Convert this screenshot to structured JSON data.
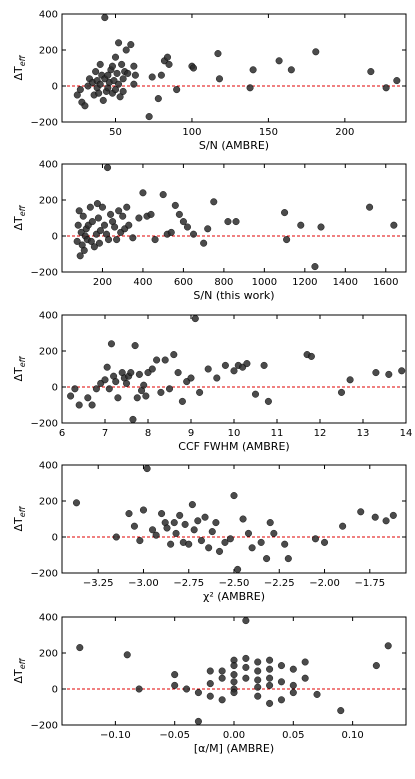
{
  "chart_data": [
    {
      "type": "scatter",
      "xlabel": "S/N (AMBRE)",
      "ylabel": "ΔT_eff",
      "xlim": [
        15,
        240
      ],
      "ylim": [
        -200,
        400
      ],
      "xticks": [
        50,
        100,
        150,
        200
      ],
      "yticks": [
        -200,
        0,
        200,
        400
      ],
      "reference_line": {
        "y": 0,
        "color": "#e00000",
        "style": "dashed"
      },
      "x": [
        25,
        27,
        28,
        30,
        32,
        33,
        35,
        36,
        37,
        38,
        38,
        39,
        40,
        40,
        41,
        42,
        43,
        43,
        44,
        45,
        45,
        46,
        47,
        48,
        48,
        49,
        50,
        50,
        51,
        52,
        52,
        53,
        54,
        55,
        55,
        56,
        57,
        58,
        60,
        62,
        62,
        63,
        72,
        74,
        78,
        80,
        82,
        84,
        85,
        90,
        100,
        101,
        117,
        118,
        138,
        140,
        157,
        165,
        181,
        217,
        227,
        234
      ],
      "y": [
        -50,
        -20,
        -90,
        -110,
        0,
        40,
        20,
        -50,
        80,
        -10,
        30,
        -40,
        10,
        120,
        60,
        -80,
        380,
        40,
        -30,
        60,
        -10,
        20,
        90,
        110,
        -40,
        30,
        160,
        -20,
        70,
        10,
        240,
        -60,
        120,
        40,
        -30,
        80,
        200,
        70,
        230,
        10,
        110,
        60,
        -170,
        50,
        -70,
        60,
        140,
        160,
        120,
        -20,
        110,
        100,
        180,
        40,
        -10,
        90,
        140,
        90,
        190,
        80,
        -10,
        30
      ]
    },
    {
      "type": "scatter",
      "xlabel": "S/N (this work)",
      "ylabel": "ΔT_eff",
      "xlim": [
        0,
        1700
      ],
      "ylim": [
        -200,
        400
      ],
      "xticks": [
        200,
        400,
        600,
        800,
        1000,
        1200,
        1400,
        1600
      ],
      "yticks": [
        -200,
        0,
        200,
        400
      ],
      "reference_line": {
        "y": 0,
        "color": "#e00000",
        "style": "dashed"
      },
      "x": [
        75,
        80,
        85,
        90,
        95,
        100,
        105,
        110,
        115,
        120,
        125,
        130,
        140,
        145,
        150,
        160,
        170,
        175,
        180,
        185,
        190,
        200,
        210,
        220,
        225,
        230,
        240,
        250,
        260,
        270,
        280,
        290,
        300,
        310,
        320,
        330,
        350,
        380,
        400,
        420,
        440,
        460,
        500,
        520,
        540,
        560,
        580,
        600,
        620,
        650,
        700,
        720,
        750,
        820,
        860,
        1100,
        1110,
        1180,
        1250,
        1280,
        1520,
        1640
      ],
      "y": [
        -30,
        60,
        140,
        -110,
        20,
        -50,
        110,
        -80,
        0,
        40,
        -20,
        60,
        160,
        -30,
        80,
        -60,
        10,
        180,
        100,
        -40,
        30,
        160,
        60,
        10,
        380,
        -20,
        120,
        80,
        50,
        -20,
        140,
        20,
        110,
        40,
        160,
        60,
        -10,
        100,
        240,
        110,
        120,
        -20,
        230,
        10,
        20,
        170,
        120,
        80,
        50,
        10,
        -40,
        40,
        190,
        80,
        80,
        130,
        -20,
        60,
        -170,
        50,
        160,
        60
      ]
    },
    {
      "type": "scatter",
      "xlabel": "CCF FWHM (AMBRE)",
      "ylabel": "ΔT_eff",
      "xlim": [
        6,
        14
      ],
      "ylim": [
        -200,
        400
      ],
      "xticks": [
        6,
        7,
        8,
        9,
        10,
        11,
        12,
        13,
        14
      ],
      "yticks": [
        -200,
        0,
        200,
        400
      ],
      "reference_line": {
        "y": 0,
        "color": "#e00000",
        "style": "dashed"
      },
      "x": [
        6.2,
        6.3,
        6.4,
        6.6,
        6.7,
        6.8,
        6.9,
        7.0,
        7.05,
        7.1,
        7.15,
        7.2,
        7.25,
        7.3,
        7.4,
        7.45,
        7.5,
        7.55,
        7.6,
        7.65,
        7.7,
        7.75,
        7.8,
        7.85,
        7.9,
        7.95,
        8.0,
        8.1,
        8.2,
        8.3,
        8.4,
        8.5,
        8.6,
        8.7,
        8.8,
        8.9,
        9.0,
        9.1,
        9.2,
        9.4,
        9.6,
        9.8,
        10.0,
        10.1,
        10.2,
        10.3,
        10.5,
        10.7,
        10.8,
        11.7,
        11.8,
        12.5,
        12.7,
        13.3,
        13.6,
        13.9
      ],
      "y": [
        -50,
        -10,
        -100,
        -60,
        -100,
        -10,
        20,
        40,
        110,
        -10,
        240,
        60,
        30,
        -60,
        80,
        50,
        20,
        60,
        80,
        -180,
        230,
        -60,
        70,
        -20,
        10,
        -50,
        80,
        100,
        150,
        -30,
        150,
        -10,
        180,
        80,
        -80,
        30,
        50,
        380,
        -30,
        100,
        50,
        120,
        90,
        120,
        110,
        130,
        -40,
        120,
        -80,
        180,
        170,
        -30,
        40,
        80,
        70,
        90
      ]
    },
    {
      "type": "scatter",
      "xlabel": "χ² (AMBRE)",
      "ylabel": "ΔT_eff",
      "xlim": [
        -3.45,
        -1.55
      ],
      "ylim": [
        -200,
        400
      ],
      "xticks": [
        -3.25,
        -3.0,
        -2.75,
        -2.5,
        -2.25,
        -2.0,
        -1.75
      ],
      "xtick_labels": [
        "−3.25",
        "−3.00",
        "−2.75",
        "−2.50",
        "−2.25",
        "−2.00",
        "−1.75"
      ],
      "yticks": [
        -200,
        0,
        200,
        400
      ],
      "reference_line": {
        "y": 0,
        "color": "#e00000",
        "style": "dashed"
      },
      "x": [
        -3.37,
        -3.15,
        -3.08,
        -3.05,
        -3.02,
        -3.0,
        -2.98,
        -2.95,
        -2.93,
        -2.9,
        -2.88,
        -2.87,
        -2.85,
        -2.83,
        -2.82,
        -2.8,
        -2.78,
        -2.77,
        -2.75,
        -2.73,
        -2.72,
        -2.7,
        -2.68,
        -2.66,
        -2.64,
        -2.62,
        -2.6,
        -2.58,
        -2.55,
        -2.52,
        -2.5,
        -2.48,
        -2.45,
        -2.42,
        -2.4,
        -2.35,
        -2.32,
        -2.3,
        -2.28,
        -2.22,
        -2.2,
        -2.05,
        -2.0,
        -1.9,
        -1.8,
        -1.72,
        -1.66,
        -1.62
      ],
      "y": [
        190,
        0,
        130,
        60,
        -20,
        150,
        380,
        40,
        10,
        130,
        80,
        50,
        -40,
        80,
        20,
        120,
        -30,
        70,
        -40,
        180,
        40,
        90,
        -20,
        110,
        -60,
        30,
        80,
        -80,
        -30,
        -10,
        230,
        -180,
        100,
        20,
        -60,
        -30,
        -120,
        80,
        20,
        -40,
        -120,
        -10,
        -30,
        60,
        140,
        110,
        90,
        120
      ]
    },
    {
      "type": "scatter",
      "xlabel": "[α/M] (AMBRE)",
      "ylabel": "ΔT_eff",
      "xlim": [
        -0.145,
        0.145
      ],
      "ylim": [
        -200,
        400
      ],
      "xticks": [
        -0.1,
        -0.05,
        0.0,
        0.05,
        0.1
      ],
      "xtick_labels": [
        "−0.10",
        "−0.05",
        "0.00",
        "0.05",
        "0.10"
      ],
      "yticks": [
        -200,
        0,
        200,
        400
      ],
      "reference_line": {
        "y": 0,
        "color": "#e00000",
        "style": "dashed"
      },
      "x": [
        -0.13,
        -0.09,
        -0.08,
        -0.05,
        -0.05,
        -0.04,
        -0.03,
        -0.03,
        -0.02,
        -0.02,
        -0.02,
        -0.01,
        -0.01,
        -0.01,
        0.0,
        0.0,
        0.0,
        0.0,
        0.0,
        0.0,
        0.01,
        0.01,
        0.01,
        0.01,
        0.02,
        0.02,
        0.02,
        0.02,
        0.02,
        0.03,
        0.03,
        0.03,
        0.03,
        0.03,
        0.04,
        0.04,
        0.04,
        0.05,
        0.05,
        0.05,
        0.06,
        0.06,
        0.07,
        0.09,
        0.12,
        0.13
      ],
      "y": [
        230,
        190,
        0,
        80,
        20,
        0,
        -20,
        -180,
        100,
        30,
        -40,
        100,
        60,
        -60,
        160,
        130,
        80,
        40,
        0,
        -20,
        380,
        170,
        120,
        60,
        150,
        100,
        50,
        10,
        -40,
        160,
        110,
        60,
        20,
        -80,
        130,
        40,
        -60,
        110,
        20,
        -20,
        150,
        60,
        -30,
        -120,
        130,
        240
      ]
    }
  ]
}
